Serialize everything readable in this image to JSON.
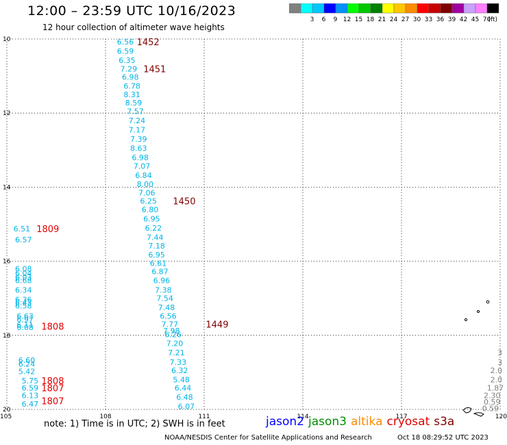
{
  "header": {
    "title": "12:00 – 23:59 UTC 10/16/2023",
    "subtitle": "12 hour collection of altimeter wave heights"
  },
  "legend": {
    "unit": "(ft)",
    "bins": [
      {
        "color": "#808080",
        "label": ""
      },
      {
        "color": "#00ffff",
        "label": "3"
      },
      {
        "color": "#00c8ff",
        "label": "6"
      },
      {
        "color": "#0000ff",
        "label": "9"
      },
      {
        "color": "#0090ff",
        "label": "12"
      },
      {
        "color": "#00ff00",
        "label": "15"
      },
      {
        "color": "#00c800",
        "label": "18"
      },
      {
        "color": "#008000",
        "label": "21"
      },
      {
        "color": "#ffff00",
        "label": "24"
      },
      {
        "color": "#ffc800",
        "label": "27"
      },
      {
        "color": "#ff8c00",
        "label": "30"
      },
      {
        "color": "#ff0000",
        "label": "33"
      },
      {
        "color": "#c80000",
        "label": "36"
      },
      {
        "color": "#800000",
        "label": "39"
      },
      {
        "color": "#a000a0",
        "label": "42"
      },
      {
        "color": "#c8a0ff",
        "label": "45"
      },
      {
        "color": "#ff80ff",
        "label": "70"
      },
      {
        "color": "#000000",
        "label": ""
      }
    ]
  },
  "map": {
    "lon_range": [
      105,
      120
    ],
    "lat_range": [
      10,
      20
    ],
    "lon_ticks": [
      "105",
      "108",
      "111",
      "114",
      "117",
      "120"
    ],
    "lat_ticks": [
      "10",
      "12",
      "14",
      "16",
      "18",
      "20"
    ],
    "grid": true
  },
  "passes": [
    {
      "time": "1452",
      "lon": 108.95,
      "lat": 10.07,
      "color": "#800000"
    },
    {
      "time": "1451",
      "lon": 109.15,
      "lat": 10.8,
      "color": "#800000"
    },
    {
      "time": "1450",
      "lon": 110.05,
      "lat": 14.37,
      "color": "#800000"
    },
    {
      "time": "1449",
      "lon": 111.05,
      "lat": 17.7,
      "color": "#800000"
    },
    {
      "time": "1809",
      "lon": 105.9,
      "lat": 15.12,
      "color": "#e00000"
    },
    {
      "time": "1808",
      "lon": 106.05,
      "lat": 17.75,
      "color": "#e00000"
    },
    {
      "time": "1808",
      "lon": 106.05,
      "lat": 19.22,
      "color": "#e00000"
    },
    {
      "time": "1807",
      "lon": 106.05,
      "lat": 19.42,
      "color": "#e00000"
    },
    {
      "time": "1807",
      "lon": 106.05,
      "lat": 19.77,
      "color": "#e00000"
    }
  ],
  "swh_points": [
    {
      "v": "6.56",
      "lon": 108.35,
      "lat": 10.07
    },
    {
      "v": "6.59",
      "lon": 108.35,
      "lat": 10.32
    },
    {
      "v": "6.35",
      "lon": 108.4,
      "lat": 10.57
    },
    {
      "v": "7.29",
      "lon": 108.45,
      "lat": 10.8
    },
    {
      "v": "6.98",
      "lon": 108.5,
      "lat": 11.03
    },
    {
      "v": "6.78",
      "lon": 108.55,
      "lat": 11.27
    },
    {
      "v": "8.31",
      "lon": 108.55,
      "lat": 11.5
    },
    {
      "v": "8.59",
      "lon": 108.6,
      "lat": 11.72
    },
    {
      "v": "7.57",
      "lon": 108.65,
      "lat": 11.95
    },
    {
      "v": "7.24",
      "lon": 108.7,
      "lat": 12.2
    },
    {
      "v": "7.17",
      "lon": 108.7,
      "lat": 12.45
    },
    {
      "v": "7.39",
      "lon": 108.75,
      "lat": 12.7
    },
    {
      "v": "8.63",
      "lon": 108.75,
      "lat": 12.95
    },
    {
      "v": "6.98",
      "lon": 108.8,
      "lat": 13.2
    },
    {
      "v": "7.07",
      "lon": 108.85,
      "lat": 13.43
    },
    {
      "v": "6.84",
      "lon": 108.9,
      "lat": 13.68
    },
    {
      "v": "8.00",
      "lon": 108.95,
      "lat": 13.92
    },
    {
      "v": "7.06",
      "lon": 109.0,
      "lat": 14.15
    },
    {
      "v": "6.25",
      "lon": 109.05,
      "lat": 14.37
    },
    {
      "v": "6.80",
      "lon": 109.1,
      "lat": 14.6
    },
    {
      "v": "6.95",
      "lon": 109.15,
      "lat": 14.85
    },
    {
      "v": "6.22",
      "lon": 109.2,
      "lat": 15.1
    },
    {
      "v": "7.44",
      "lon": 109.25,
      "lat": 15.35
    },
    {
      "v": "7.18",
      "lon": 109.3,
      "lat": 15.58
    },
    {
      "v": "6.95",
      "lon": 109.3,
      "lat": 15.82
    },
    {
      "v": "6.61",
      "lon": 109.35,
      "lat": 16.05
    },
    {
      "v": "6.87",
      "lon": 109.4,
      "lat": 16.28
    },
    {
      "v": "6.96",
      "lon": 109.45,
      "lat": 16.52
    },
    {
      "v": "7.38",
      "lon": 109.5,
      "lat": 16.77
    },
    {
      "v": "7.54",
      "lon": 109.55,
      "lat": 17.0
    },
    {
      "v": "7.48",
      "lon": 109.6,
      "lat": 17.25
    },
    {
      "v": "6.56",
      "lon": 109.65,
      "lat": 17.48
    },
    {
      "v": "7.77",
      "lon": 109.7,
      "lat": 17.7
    },
    {
      "v": "7.98",
      "lon": 109.75,
      "lat": 17.87
    },
    {
      "v": "6.26",
      "lon": 109.8,
      "lat": 17.98
    },
    {
      "v": "7.20",
      "lon": 109.85,
      "lat": 18.22
    },
    {
      "v": "7.21",
      "lon": 109.9,
      "lat": 18.47
    },
    {
      "v": "7.33",
      "lon": 109.95,
      "lat": 18.72
    },
    {
      "v": "6.32",
      "lon": 110.0,
      "lat": 18.95
    },
    {
      "v": "5.48",
      "lon": 110.05,
      "lat": 19.2
    },
    {
      "v": "6.44",
      "lon": 110.1,
      "lat": 19.42
    },
    {
      "v": "6.48",
      "lon": 110.15,
      "lat": 19.67
    },
    {
      "v": "6.07",
      "lon": 110.2,
      "lat": 19.92
    },
    {
      "v": "6.51",
      "lon": 105.2,
      "lat": 15.12
    },
    {
      "v": "6.57",
      "lon": 105.25,
      "lat": 15.42
    },
    {
      "v": "6.08",
      "lon": 105.25,
      "lat": 16.2
    },
    {
      "v": "6.04",
      "lon": 105.25,
      "lat": 16.32
    },
    {
      "v": "6.03",
      "lon": 105.25,
      "lat": 16.43
    },
    {
      "v": "6.68",
      "lon": 105.25,
      "lat": 16.52
    },
    {
      "v": "6.34",
      "lon": 105.25,
      "lat": 16.77
    },
    {
      "v": "6.36",
      "lon": 105.25,
      "lat": 17.03
    },
    {
      "v": "6.43",
      "lon": 105.25,
      "lat": 17.12
    },
    {
      "v": "6.58",
      "lon": 105.25,
      "lat": 17.2
    },
    {
      "v": "6.63",
      "lon": 105.3,
      "lat": 17.48
    },
    {
      "v": "6.97",
      "lon": 105.3,
      "lat": 17.57
    },
    {
      "v": "6.11",
      "lon": 105.3,
      "lat": 17.72
    },
    {
      "v": "6.08",
      "lon": 105.3,
      "lat": 17.78
    },
    {
      "v": "6.60",
      "lon": 105.35,
      "lat": 18.67
    },
    {
      "v": "6.24",
      "lon": 105.35,
      "lat": 18.77
    },
    {
      "v": "5.42",
      "lon": 105.35,
      "lat": 18.97
    },
    {
      "v": "5.75",
      "lon": 105.45,
      "lat": 19.22
    },
    {
      "v": "6.59",
      "lon": 105.45,
      "lat": 19.42
    },
    {
      "v": "6.13",
      "lon": 105.45,
      "lat": 19.62
    },
    {
      "v": "6.47",
      "lon": 105.45,
      "lat": 19.85
    }
  ],
  "gray_points": [
    {
      "v": "3",
      "lon": 119.92,
      "lat": 18.47
    },
    {
      "v": "3",
      "lon": 119.92,
      "lat": 18.72
    },
    {
      "v": "2.0",
      "lon": 119.7,
      "lat": 18.95
    },
    {
      "v": "2.0",
      "lon": 119.7,
      "lat": 19.2
    },
    {
      "v": "1.87",
      "lon": 119.6,
      "lat": 19.42
    },
    {
      "v": "2.30",
      "lon": 119.5,
      "lat": 19.62
    },
    {
      "v": "0.59",
      "lon": 119.5,
      "lat": 19.8
    },
    {
      "v": "0.59",
      "lon": 119.45,
      "lat": 19.97
    }
  ],
  "footer": {
    "note": "note: 1) Time is in UTC; 2) SWH is in feet",
    "satellites": [
      {
        "name": "jason2",
        "color": "#0000ff"
      },
      {
        "name": "jason3",
        "color": "#009000"
      },
      {
        "name": "altika",
        "color": "#ff8c00"
      },
      {
        "name": "cryosat",
        "color": "#e00000"
      },
      {
        "name": "s3a",
        "color": "#800000"
      }
    ],
    "credit": "NOAA/NESDIS Center for Satellite Applications and Research",
    "timestamp": "Oct 18 08:29:52 UTC 2023"
  }
}
